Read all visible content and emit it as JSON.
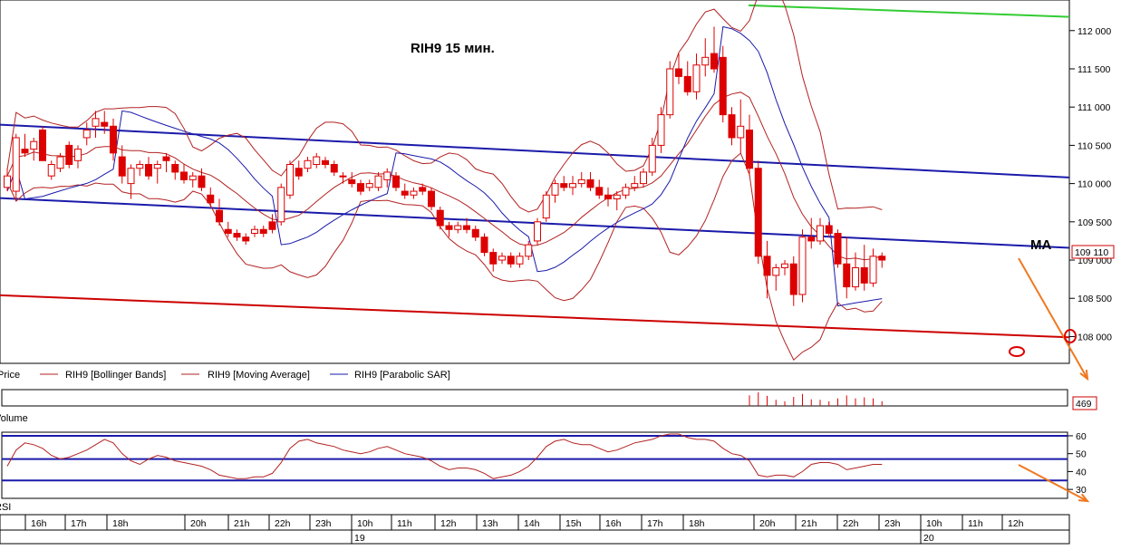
{
  "chart_data": {
    "type": "candlestick",
    "title": "RIH9   15 мин.",
    "annotation_ma": "MA",
    "current_price_label": "109 110",
    "volume_value_label": "469",
    "price_axis": {
      "ylim": [
        107650,
        112400
      ],
      "ticks": [
        "112 000",
        "111 500",
        "111 000",
        "110 500",
        "110 000",
        "109 500",
        "109 000",
        "108 500",
        "108 000"
      ],
      "tick_values": [
        112000,
        111500,
        111000,
        110500,
        110000,
        109500,
        109000,
        108500,
        108000
      ]
    },
    "rsi_axis": {
      "ylim": [
        25,
        62
      ],
      "ticks": [
        "60",
        "50",
        "40",
        "30"
      ],
      "tick_values": [
        60,
        50,
        40,
        30
      ],
      "levels": [
        60,
        47,
        35
      ]
    },
    "legend": [
      "Price",
      "RIH9 [Bollinger Bands]",
      "RIH9 [Moving Average]",
      "RIH9 [Parabolic SAR]"
    ],
    "volume_label": "Volume",
    "rsi_label": "RSI",
    "time_labels": [
      "16h",
      "17h",
      "18h",
      "20h",
      "21h",
      "22h",
      "23h",
      "10h",
      "11h",
      "12h",
      "13h",
      "14h",
      "15h",
      "16h",
      "17h",
      "18h",
      "20h",
      "21h",
      "22h",
      "23h",
      "10h",
      "11h",
      "12h"
    ],
    "date_labels": [
      "19",
      "20"
    ],
    "colors": {
      "candle": "#dd0000",
      "bollinger": "#b22222",
      "sar": "#1a1aaa",
      "trend_blue": "#1a1aaa",
      "trend_red": "#cc0000",
      "trend_green": "#33cc33",
      "forecast": "#f07820"
    },
    "candles": [
      [
        109950,
        110200,
        109900,
        110100
      ],
      [
        109900,
        110650,
        109800,
        110600
      ],
      [
        110450,
        110650,
        110350,
        110400
      ],
      [
        110450,
        110600,
        110300,
        110550
      ],
      [
        110700,
        110750,
        110300,
        110300
      ],
      [
        110100,
        110300,
        110050,
        110250
      ],
      [
        110200,
        110400,
        110150,
        110350
      ],
      [
        110500,
        110550,
        110200,
        110250
      ],
      [
        110300,
        110500,
        110200,
        110450
      ],
      [
        110600,
        110800,
        110500,
        110700
      ],
      [
        110750,
        110950,
        110600,
        110850
      ],
      [
        110800,
        110950,
        110650,
        110750
      ],
      [
        110750,
        110850,
        110300,
        110400
      ],
      [
        110350,
        110500,
        110000,
        110100
      ],
      [
        110000,
        110250,
        109800,
        110200
      ],
      [
        110200,
        110300,
        110100,
        110250
      ],
      [
        110250,
        110350,
        110050,
        110100
      ],
      [
        110200,
        110300,
        110000,
        110250
      ],
      [
        110350,
        110400,
        110150,
        110300
      ],
      [
        110250,
        110300,
        110050,
        110150
      ],
      [
        110150,
        110250,
        110000,
        110050
      ],
      [
        110050,
        110150,
        109950,
        110100
      ],
      [
        110100,
        110200,
        109900,
        109950
      ],
      [
        109850,
        109950,
        109700,
        109750
      ],
      [
        109650,
        109800,
        109450,
        109500
      ],
      [
        109400,
        109500,
        109300,
        109350
      ],
      [
        109350,
        109400,
        109250,
        109300
      ],
      [
        109300,
        109350,
        109200,
        109250
      ],
      [
        109350,
        109450,
        109300,
        109400
      ],
      [
        109400,
        109450,
        109300,
        109350
      ],
      [
        109500,
        109600,
        109350,
        109400
      ],
      [
        109500,
        110000,
        109450,
        109950
      ],
      [
        109850,
        110300,
        109800,
        110250
      ],
      [
        110200,
        110300,
        110050,
        110100
      ],
      [
        110200,
        110350,
        110150,
        110300
      ],
      [
        110250,
        110400,
        110200,
        110350
      ],
      [
        110300,
        110350,
        110200,
        110250
      ],
      [
        110250,
        110300,
        110100,
        110150
      ],
      [
        110100,
        110150,
        110000,
        110100
      ],
      [
        110050,
        110150,
        109950,
        110000
      ],
      [
        110000,
        110050,
        109850,
        109900
      ],
      [
        109950,
        110050,
        109900,
        110000
      ],
      [
        109950,
        110150,
        109900,
        110100
      ],
      [
        110050,
        110200,
        109950,
        110150
      ],
      [
        110100,
        110150,
        109900,
        109950
      ],
      [
        109900,
        110000,
        109800,
        109850
      ],
      [
        109850,
        109950,
        109800,
        109900
      ],
      [
        109950,
        110000,
        109850,
        109900
      ],
      [
        109900,
        109950,
        109650,
        109700
      ],
      [
        109650,
        109700,
        109400,
        109450
      ],
      [
        109450,
        109500,
        109300,
        109400
      ],
      [
        109400,
        109500,
        109350,
        109450
      ],
      [
        109450,
        109550,
        109350,
        109400
      ],
      [
        109400,
        109450,
        109250,
        109300
      ],
      [
        109300,
        109350,
        109050,
        109100
      ],
      [
        109100,
        109150,
        108850,
        108950
      ],
      [
        109000,
        109100,
        108950,
        109050
      ],
      [
        109050,
        109100,
        108900,
        108950
      ],
      [
        108950,
        109100,
        108900,
        109050
      ],
      [
        109050,
        109250,
        109000,
        109200
      ],
      [
        109250,
        109550,
        109200,
        109500
      ],
      [
        109550,
        109900,
        109500,
        109850
      ],
      [
        109850,
        110050,
        109750,
        110000
      ],
      [
        110000,
        110100,
        109900,
        109950
      ],
      [
        109950,
        110100,
        109850,
        110000
      ],
      [
        110000,
        110150,
        109950,
        110050
      ],
      [
        110050,
        110150,
        109900,
        109950
      ],
      [
        109950,
        110050,
        109800,
        109850
      ],
      [
        109850,
        109950,
        109700,
        109800
      ],
      [
        109800,
        109900,
        109650,
        109850
      ],
      [
        109850,
        110000,
        109800,
        109950
      ],
      [
        109950,
        110100,
        109900,
        110000
      ],
      [
        110000,
        110200,
        109950,
        110150
      ],
      [
        110150,
        110600,
        110100,
        110500
      ],
      [
        110500,
        111000,
        110400,
        110900
      ],
      [
        110900,
        111600,
        110850,
        111500
      ],
      [
        111500,
        111700,
        111300,
        111400
      ],
      [
        111400,
        111600,
        111150,
        111200
      ],
      [
        111200,
        111700,
        111100,
        111550
      ],
      [
        111550,
        111900,
        111400,
        111650
      ],
      [
        111700,
        112050,
        111450,
        111500
      ],
      [
        111650,
        111800,
        110800,
        110900
      ],
      [
        110900,
        111000,
        110500,
        110600
      ],
      [
        110600,
        111100,
        110400,
        110750
      ],
      [
        110700,
        110900,
        110100,
        110200
      ],
      [
        110200,
        110300,
        108950,
        109050
      ],
      [
        109050,
        109250,
        108500,
        108800
      ],
      [
        108800,
        108950,
        108600,
        108900
      ],
      [
        108900,
        109000,
        108800,
        108950
      ],
      [
        108950,
        109050,
        108400,
        108550
      ],
      [
        108550,
        109400,
        108450,
        109300
      ],
      [
        109300,
        109550,
        109150,
        109250
      ],
      [
        109250,
        109550,
        109200,
        109450
      ],
      [
        109450,
        109500,
        109300,
        109350
      ],
      [
        109350,
        109400,
        108900,
        108950
      ],
      [
        108950,
        109300,
        108500,
        108650
      ],
      [
        108650,
        109100,
        108600,
        108900
      ],
      [
        108900,
        109200,
        108600,
        108700
      ],
      [
        108700,
        109150,
        108650,
        109050
      ],
      [
        109050,
        109100,
        108900,
        109000
      ]
    ],
    "rsi": [
      43,
      52,
      56,
      55,
      53,
      49,
      47,
      48,
      50,
      52,
      55,
      58,
      56,
      50,
      46,
      44,
      47,
      49,
      48,
      46,
      45,
      44,
      43,
      41,
      38,
      37,
      36,
      36,
      37,
      37,
      39,
      45,
      53,
      57,
      58,
      56,
      55,
      54,
      52,
      51,
      50,
      51,
      53,
      54,
      52,
      50,
      49,
      48,
      46,
      43,
      41,
      42,
      42,
      41,
      39,
      36,
      37,
      38,
      40,
      43,
      48,
      54,
      57,
      58,
      56,
      55,
      55,
      53,
      51,
      52,
      54,
      56,
      57,
      58,
      60,
      61,
      61,
      59,
      58,
      58,
      57,
      53,
      50,
      49,
      46,
      38,
      37,
      38,
      38,
      37,
      40,
      44,
      45,
      45,
      44,
      41,
      42,
      43,
      44,
      44
    ],
    "forecast_arrows": [
      {
        "from": [
          1124,
          285
        ],
        "to": [
          1200,
          418
        ]
      },
      {
        "from": [
          1124,
          513
        ],
        "to": [
          1200,
          553
        ]
      }
    ]
  }
}
